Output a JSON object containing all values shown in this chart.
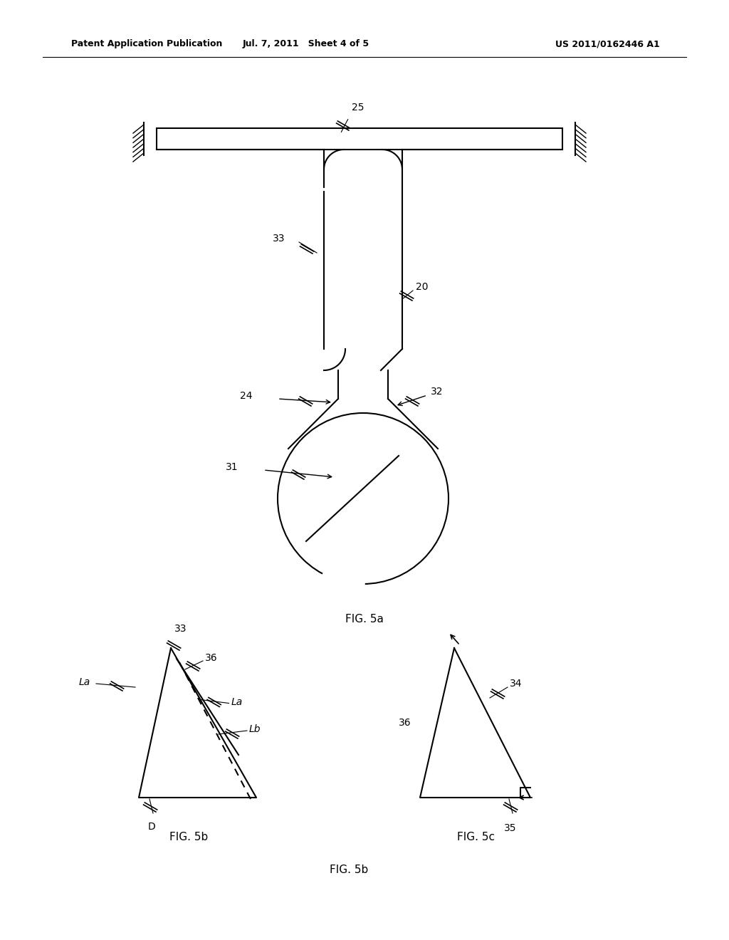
{
  "bg_color": "#ffffff",
  "line_color": "#000000",
  "header_left": "Patent Application Publication",
  "header_mid": "Jul. 7, 2011   Sheet 4 of 5",
  "header_right": "US 2011/0162446 A1",
  "fig5a_label": "FIG. 5a",
  "fig5b_label": "FIG. 5b",
  "fig5c_label": "FIG. 5c",
  "fig5b_bottom_label": "FIG. 5b"
}
